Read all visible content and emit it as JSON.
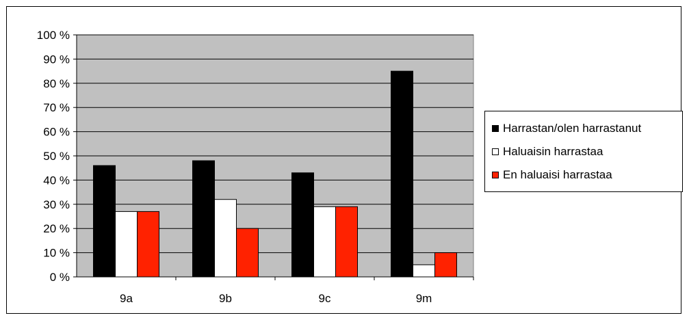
{
  "chart_data": {
    "type": "bar",
    "categories": [
      "9a",
      "9b",
      "9c",
      "9m"
    ],
    "series": [
      {
        "name": "Harrastan/olen harrastanut",
        "values": [
          46,
          48,
          43,
          85
        ],
        "color": "#000000"
      },
      {
        "name": "Haluaisin harrastaa",
        "values": [
          27,
          32,
          29,
          5
        ],
        "color": "#ffffff"
      },
      {
        "name": "En haluaisi harrastaa",
        "values": [
          27,
          20,
          29,
          10
        ],
        "color": "#ff2200"
      }
    ],
    "ylim": [
      0,
      100
    ],
    "yticks": [
      0,
      10,
      20,
      30,
      40,
      50,
      60,
      70,
      80,
      90,
      100
    ],
    "ytick_labels": [
      "0 %",
      "10 %",
      "20 %",
      "30 %",
      "40 %",
      "50 %",
      "60 %",
      "70 %",
      "80 %",
      "90 %",
      "100 %"
    ],
    "grid": true,
    "plot_background": "#c0c0c0",
    "legend_position": "right"
  }
}
